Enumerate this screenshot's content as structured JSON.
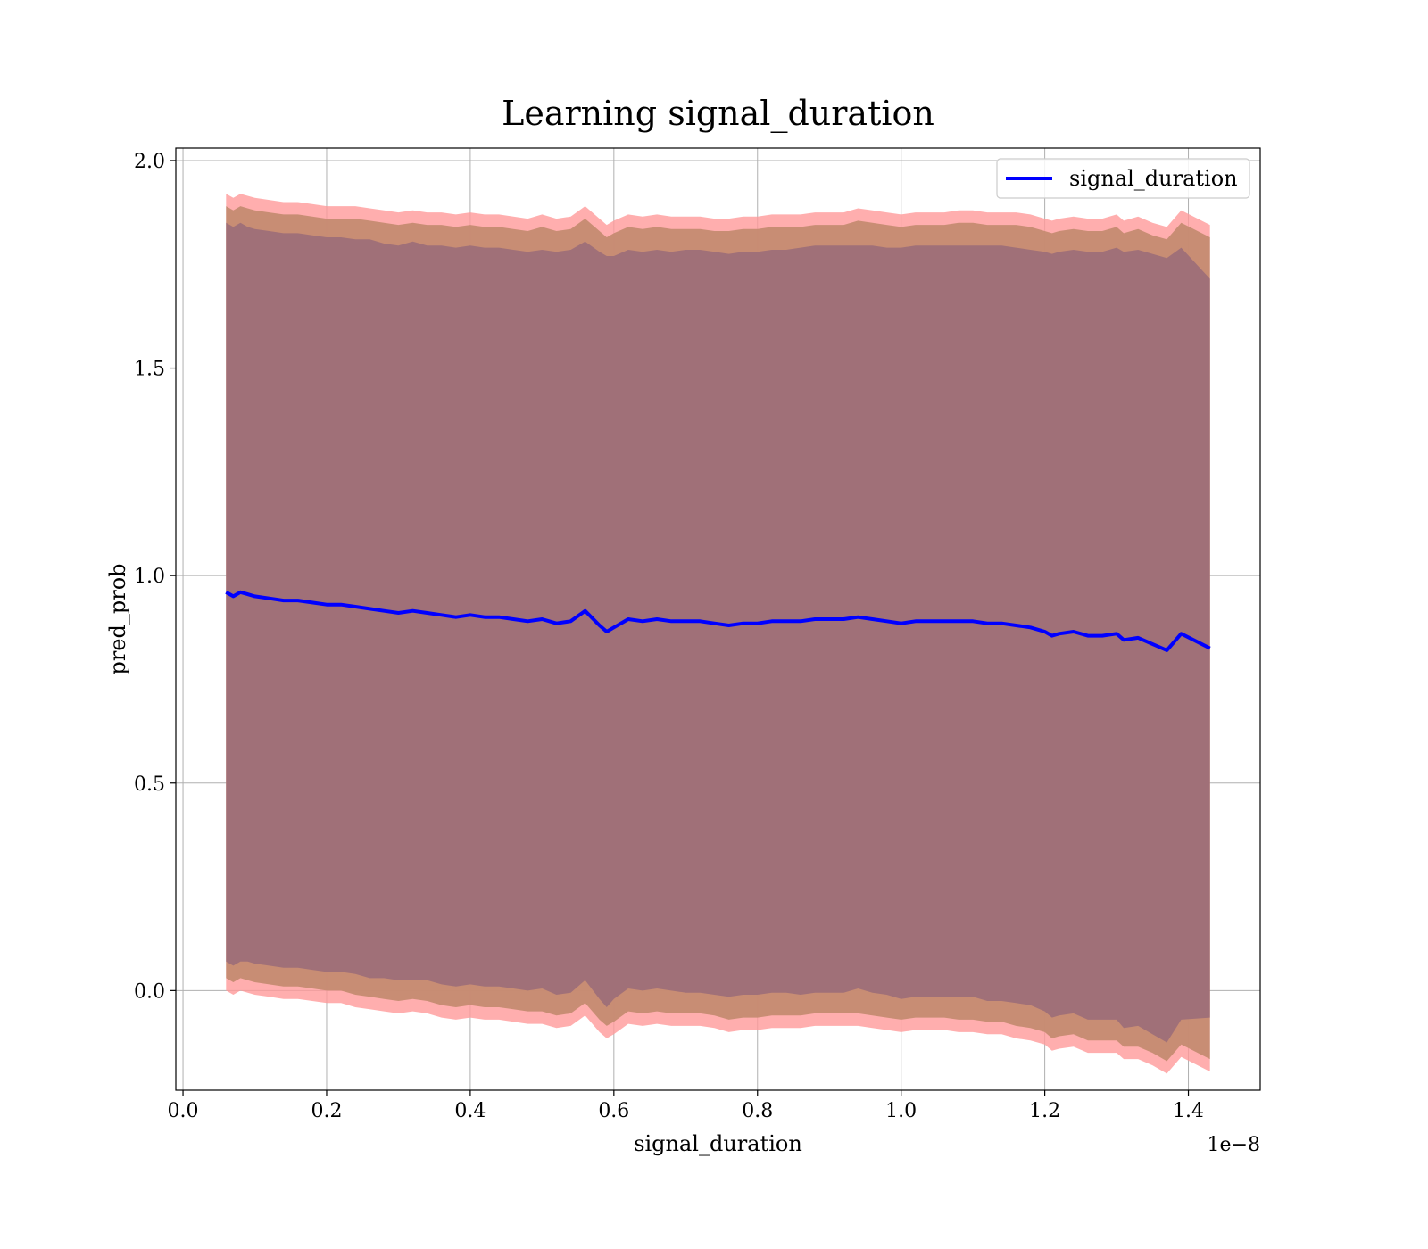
{
  "chart_data": {
    "type": "line",
    "title": "Learning signal_duration",
    "xlabel": "signal_duration",
    "ylabel": "pred_prob",
    "x_offset_label": "1e−8",
    "xlim": [
      -0.01,
      1.5
    ],
    "ylim": [
      -0.24,
      2.03
    ],
    "x_ticks": [
      0.0,
      0.2,
      0.4,
      0.6,
      0.8,
      1.0,
      1.2,
      1.4
    ],
    "x_tick_labels": [
      "0.0",
      "0.2",
      "0.4",
      "0.6",
      "0.8",
      "1.0",
      "1.2",
      "1.4"
    ],
    "y_ticks": [
      0.0,
      0.5,
      1.0,
      1.5,
      2.0
    ],
    "y_tick_labels": [
      "0.0",
      "0.5",
      "1.0",
      "1.5",
      "2.0"
    ],
    "grid": true,
    "legend": {
      "position": "top-right",
      "entries": [
        "signal_duration"
      ]
    },
    "colors": {
      "line": "#0000ff",
      "band_outer": "#ff9a9a",
      "band_mid": "#c28a6e",
      "band_inner": "#a07078"
    },
    "series": [
      {
        "name": "signal_duration",
        "x": [
          0.06,
          0.07,
          0.08,
          0.09,
          0.1,
          0.12,
          0.14,
          0.16,
          0.18,
          0.2,
          0.22,
          0.24,
          0.26,
          0.28,
          0.3,
          0.32,
          0.34,
          0.36,
          0.38,
          0.4,
          0.42,
          0.44,
          0.46,
          0.48,
          0.5,
          0.52,
          0.54,
          0.56,
          0.58,
          0.59,
          0.6,
          0.62,
          0.64,
          0.66,
          0.68,
          0.7,
          0.72,
          0.74,
          0.76,
          0.78,
          0.8,
          0.82,
          0.84,
          0.86,
          0.88,
          0.9,
          0.92,
          0.94,
          0.96,
          0.98,
          1.0,
          1.02,
          1.04,
          1.06,
          1.08,
          1.1,
          1.12,
          1.14,
          1.16,
          1.18,
          1.2,
          1.21,
          1.22,
          1.24,
          1.26,
          1.28,
          1.3,
          1.31,
          1.33,
          1.35,
          1.37,
          1.39,
          1.43
        ],
        "values": [
          0.96,
          0.95,
          0.96,
          0.955,
          0.95,
          0.945,
          0.94,
          0.94,
          0.935,
          0.93,
          0.93,
          0.925,
          0.92,
          0.915,
          0.91,
          0.915,
          0.91,
          0.905,
          0.9,
          0.905,
          0.9,
          0.9,
          0.895,
          0.89,
          0.895,
          0.885,
          0.89,
          0.915,
          0.88,
          0.865,
          0.875,
          0.895,
          0.89,
          0.895,
          0.89,
          0.89,
          0.89,
          0.885,
          0.88,
          0.885,
          0.885,
          0.89,
          0.89,
          0.89,
          0.895,
          0.895,
          0.895,
          0.9,
          0.895,
          0.89,
          0.885,
          0.89,
          0.89,
          0.89,
          0.89,
          0.89,
          0.885,
          0.885,
          0.88,
          0.875,
          0.865,
          0.855,
          0.86,
          0.865,
          0.855,
          0.855,
          0.86,
          0.845,
          0.85,
          0.835,
          0.82,
          0.86,
          0.825
        ],
        "inner_band_halfwidth": [
          0.89,
          0.89,
          0.89,
          0.885,
          0.885,
          0.885,
          0.885,
          0.885,
          0.885,
          0.885,
          0.885,
          0.885,
          0.89,
          0.885,
          0.885,
          0.89,
          0.885,
          0.89,
          0.89,
          0.89,
          0.89,
          0.89,
          0.89,
          0.89,
          0.89,
          0.895,
          0.895,
          0.89,
          0.9,
          0.905,
          0.895,
          0.89,
          0.89,
          0.89,
          0.89,
          0.895,
          0.895,
          0.895,
          0.895,
          0.895,
          0.895,
          0.895,
          0.895,
          0.9,
          0.9,
          0.9,
          0.9,
          0.895,
          0.9,
          0.9,
          0.905,
          0.905,
          0.905,
          0.905,
          0.905,
          0.905,
          0.91,
          0.91,
          0.91,
          0.91,
          0.915,
          0.92,
          0.92,
          0.92,
          0.925,
          0.925,
          0.93,
          0.935,
          0.935,
          0.94,
          0.945,
          0.93,
          0.89
        ],
        "mid_band_halfwidth": [
          0.93,
          0.93,
          0.93,
          0.93,
          0.93,
          0.93,
          0.93,
          0.93,
          0.93,
          0.93,
          0.93,
          0.935,
          0.935,
          0.935,
          0.935,
          0.935,
          0.935,
          0.94,
          0.94,
          0.94,
          0.94,
          0.94,
          0.94,
          0.94,
          0.945,
          0.945,
          0.945,
          0.945,
          0.95,
          0.95,
          0.95,
          0.945,
          0.945,
          0.945,
          0.945,
          0.945,
          0.945,
          0.945,
          0.95,
          0.95,
          0.95,
          0.95,
          0.95,
          0.95,
          0.95,
          0.95,
          0.95,
          0.955,
          0.955,
          0.955,
          0.955,
          0.955,
          0.955,
          0.955,
          0.96,
          0.96,
          0.96,
          0.96,
          0.965,
          0.965,
          0.965,
          0.97,
          0.97,
          0.97,
          0.975,
          0.975,
          0.98,
          0.98,
          0.985,
          0.985,
          0.99,
          0.99,
          0.99
        ],
        "outer_band_halfwidth": [
          0.96,
          0.96,
          0.96,
          0.96,
          0.96,
          0.96,
          0.96,
          0.96,
          0.96,
          0.96,
          0.96,
          0.965,
          0.965,
          0.965,
          0.965,
          0.965,
          0.965,
          0.97,
          0.97,
          0.97,
          0.97,
          0.97,
          0.97,
          0.97,
          0.975,
          0.975,
          0.975,
          0.975,
          0.98,
          0.98,
          0.98,
          0.975,
          0.975,
          0.975,
          0.975,
          0.975,
          0.975,
          0.975,
          0.98,
          0.98,
          0.98,
          0.98,
          0.98,
          0.98,
          0.98,
          0.98,
          0.98,
          0.985,
          0.985,
          0.985,
          0.985,
          0.985,
          0.985,
          0.985,
          0.99,
          0.99,
          0.99,
          0.99,
          0.995,
          0.995,
          0.995,
          1.0,
          1.0,
          1.0,
          1.005,
          1.005,
          1.01,
          1.01,
          1.015,
          1.015,
          1.02,
          1.02,
          1.02
        ]
      }
    ]
  }
}
